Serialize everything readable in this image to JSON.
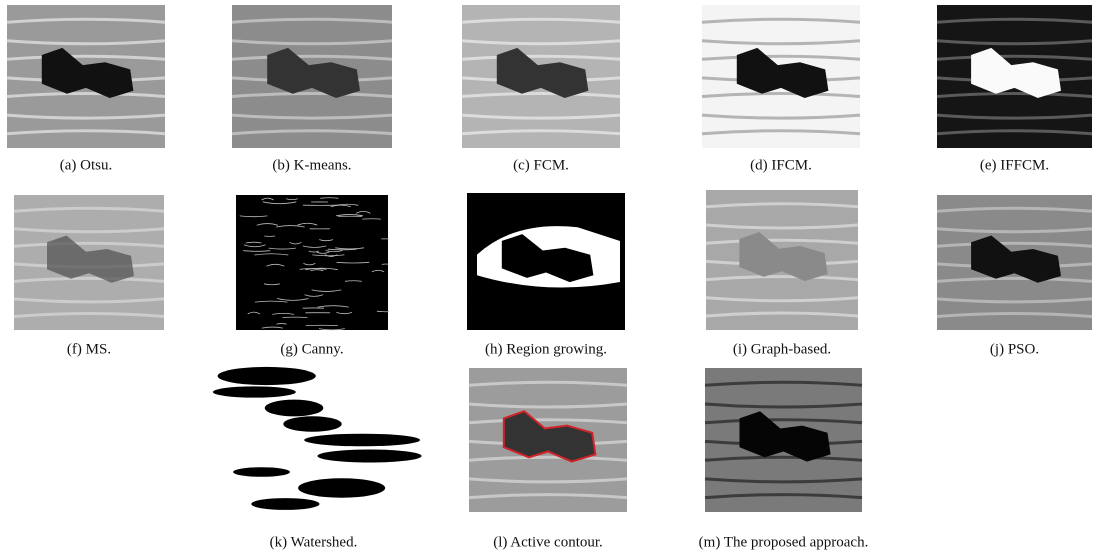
{
  "figure": {
    "panels": [
      {
        "caption": "(a) Otsu."
      },
      {
        "caption": "(b) K-means."
      },
      {
        "caption": "(c) FCM."
      },
      {
        "caption": "(d) IFCM."
      },
      {
        "caption": "(e) IFFCM."
      },
      {
        "caption": "(f) MS."
      },
      {
        "caption": "(g) Canny."
      },
      {
        "caption": "(h) Region growing."
      },
      {
        "caption": "(i) Graph-based."
      },
      {
        "caption": "(j) PSO."
      },
      {
        "caption": "(k) Watershed."
      },
      {
        "caption": "(l) Active contour."
      },
      {
        "caption": "(m) The proposed approach."
      }
    ]
  }
}
